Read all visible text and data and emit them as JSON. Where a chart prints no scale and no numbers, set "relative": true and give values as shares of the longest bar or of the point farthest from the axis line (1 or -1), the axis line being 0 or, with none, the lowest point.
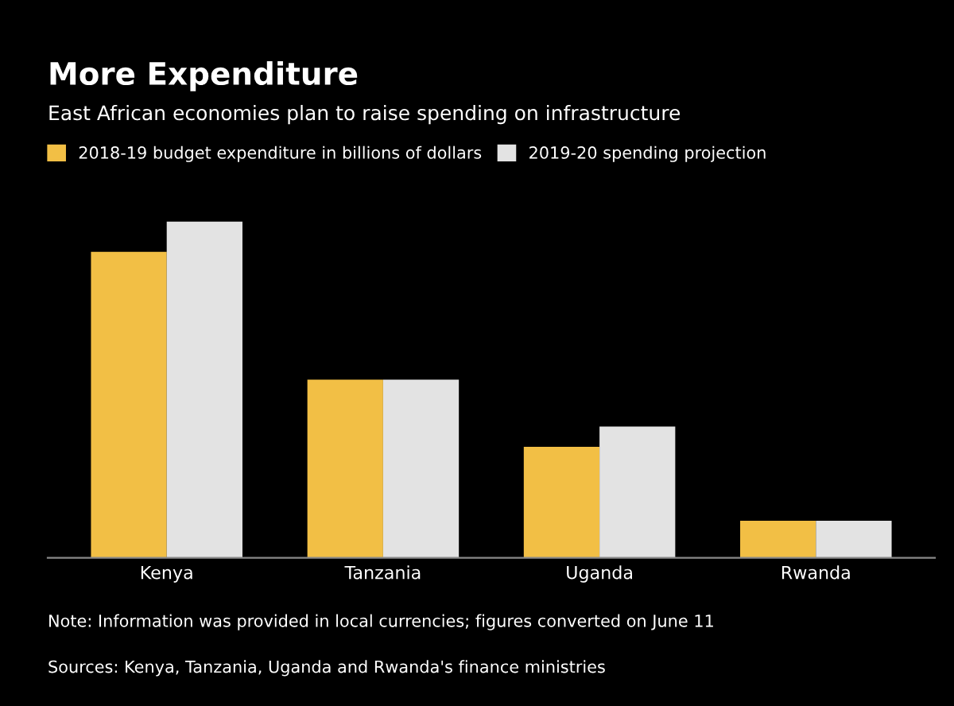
{
  "chart_data": {
    "type": "bar",
    "title": "More Expenditure",
    "subtitle": "East African economies plan to raise spending on infrastructure",
    "categories": [
      "Kenya",
      "Tanzania",
      "Uganda",
      "Rwanda"
    ],
    "series": [
      {
        "name": "2018-19 budget expenditure in billions of dollars",
        "color": "#f2bf45",
        "values": [
          0.91,
          0.53,
          0.33,
          0.11
        ]
      },
      {
        "name": "2019-20 spending projection",
        "color": "#e3e3e3",
        "values": [
          1,
          0.53,
          0.39,
          0.11
        ]
      }
    ],
    "relative": true,
    "legend": "top left",
    "annotations": [
      "Note: Information was provided in local currencies; figures converted on June 11",
      "Sources: Kenya, Tanzania, Uganda and Rwanda's finance ministries"
    ]
  }
}
